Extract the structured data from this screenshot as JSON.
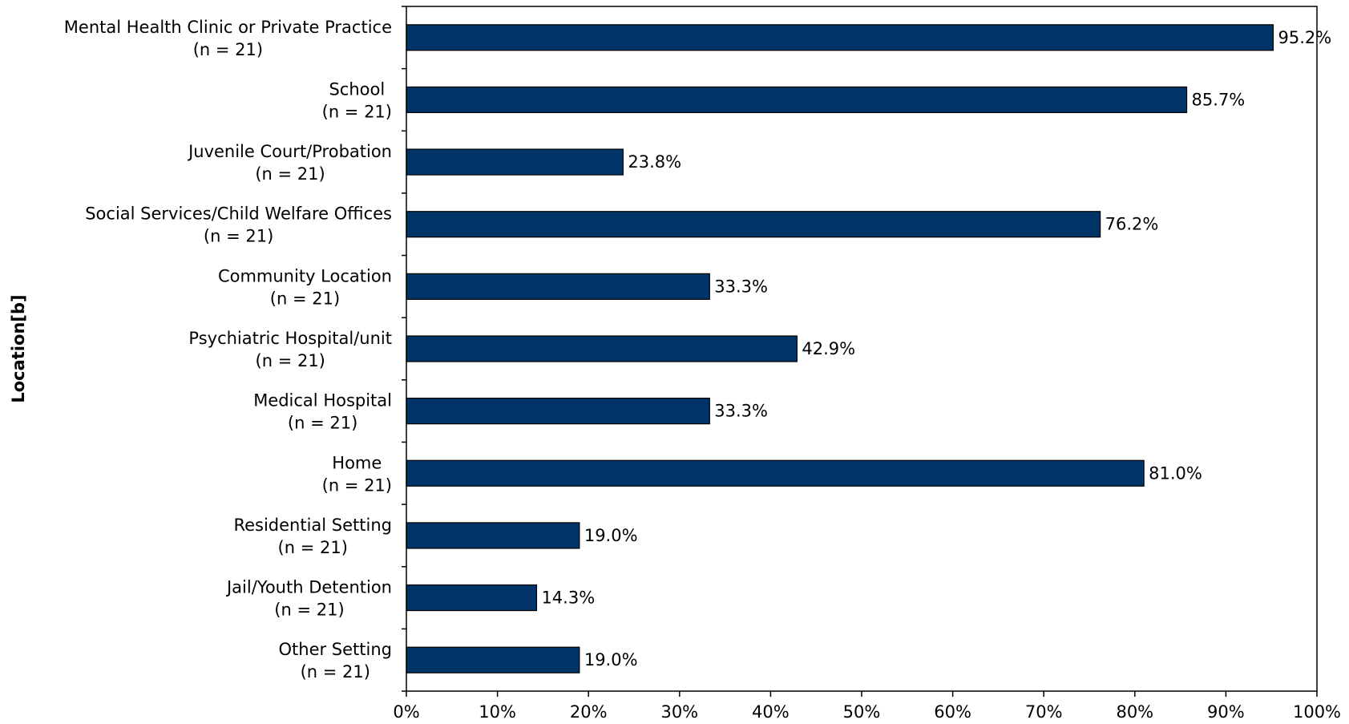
{
  "chart_data": {
    "type": "bar",
    "orientation": "horizontal",
    "categories": [
      [
        "Mental Health Clinic or Private Practice",
        "(n = 21)"
      ],
      [
        "School",
        "(n = 21)"
      ],
      [
        "Juvenile Court/Probation",
        "(n = 21)"
      ],
      [
        "Social Services/Child Welfare Offices",
        "(n = 21)"
      ],
      [
        "Community Location",
        "(n = 21)"
      ],
      [
        "Psychiatric Hospital/unit",
        "(n = 21)"
      ],
      [
        "Medical Hospital",
        "(n = 21)"
      ],
      [
        "Home",
        "(n = 21)"
      ],
      [
        "Residential Setting",
        "(n = 21)"
      ],
      [
        "Jail/Youth Detention",
        "(n = 21)"
      ],
      [
        "Other Setting",
        "(n = 21)"
      ]
    ],
    "values": [
      95.2,
      85.7,
      23.8,
      76.2,
      33.3,
      42.9,
      33.3,
      81.0,
      19.0,
      14.3,
      19.0
    ],
    "value_labels": [
      "95.2%",
      "85.7%",
      "23.8%",
      "76.2%",
      "33.3%",
      "42.9%",
      "33.3%",
      "81.0%",
      "19.0%",
      "14.3%",
      "19.0%"
    ],
    "xlim": [
      0,
      100
    ],
    "xticks": [
      "0%",
      "10%",
      "20%",
      "30%",
      "40%",
      "50%",
      "60%",
      "70%",
      "80%",
      "90%",
      "100%"
    ],
    "ylabel": "Location[b]",
    "xlabel": "",
    "title": "",
    "grid": false,
    "bar_color": "#003366"
  }
}
